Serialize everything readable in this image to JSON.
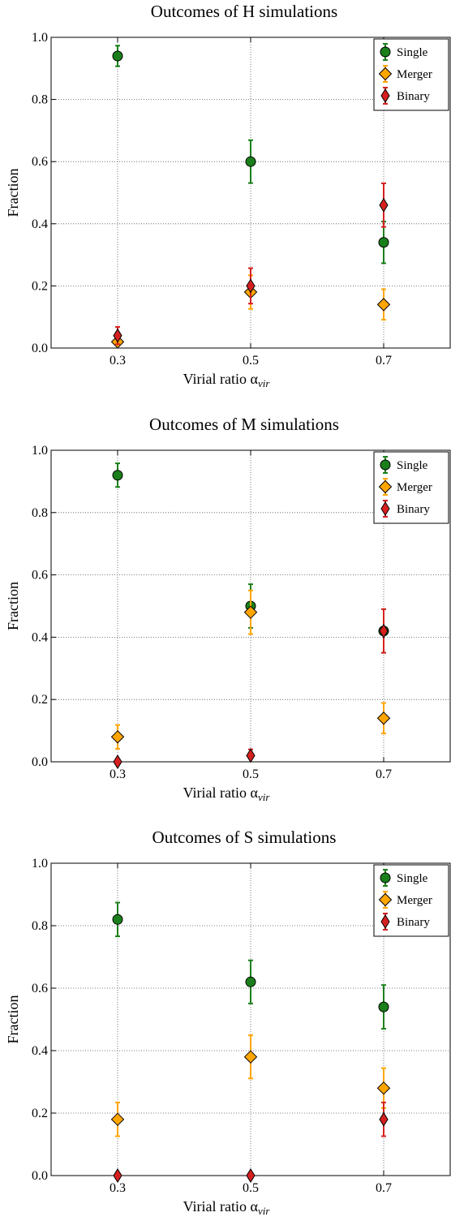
{
  "chart_data": [
    {
      "type": "scatter",
      "title": "Outcomes of H simulations",
      "xlabel": "Virial ratio α",
      "xlabel_sub": "vir",
      "ylabel": "Fraction",
      "x_ticks": [
        "0.3",
        "0.5",
        "0.7"
      ],
      "x": [
        0.3,
        0.5,
        0.7
      ],
      "xlim": [
        0.2,
        0.8
      ],
      "ylim": [
        0.0,
        1.0
      ],
      "y_ticks": [
        "0.0",
        "0.2",
        "0.4",
        "0.6",
        "0.8",
        "1.0"
      ],
      "grid": true,
      "legend_position": "top-right",
      "series": [
        {
          "name": "Single",
          "marker": "circle",
          "color": "#1a7f1a",
          "values": [
            0.94,
            0.6,
            0.34
          ],
          "errors": [
            0.033,
            0.069,
            0.067
          ]
        },
        {
          "name": "Merger",
          "marker": "diamond",
          "color": "#ffa500",
          "values": [
            0.02,
            0.18,
            0.14
          ],
          "errors": [
            0.02,
            0.054,
            0.049
          ]
        },
        {
          "name": "Binary",
          "marker": "thin-diamond",
          "color": "#d62020",
          "values": [
            0.04,
            0.2,
            0.46
          ],
          "errors": [
            0.028,
            0.057,
            0.07
          ]
        }
      ]
    },
    {
      "type": "scatter",
      "title": "Outcomes of M simulations",
      "xlabel": "Virial ratio α",
      "xlabel_sub": "vir",
      "ylabel": "Fraction",
      "x_ticks": [
        "0.3",
        "0.5",
        "0.7"
      ],
      "x": [
        0.3,
        0.5,
        0.7
      ],
      "xlim": [
        0.2,
        0.8
      ],
      "ylim": [
        0.0,
        1.0
      ],
      "y_ticks": [
        "0.0",
        "0.2",
        "0.4",
        "0.6",
        "0.8",
        "1.0"
      ],
      "grid": true,
      "legend_position": "top-right",
      "series": [
        {
          "name": "Single",
          "marker": "circle",
          "color": "#1a7f1a",
          "values": [
            0.92,
            0.5,
            0.42
          ],
          "errors": [
            0.038,
            0.07,
            0.07
          ]
        },
        {
          "name": "Merger",
          "marker": "diamond",
          "color": "#ffa500",
          "values": [
            0.08,
            0.48,
            0.14
          ],
          "errors": [
            0.038,
            0.07,
            0.049
          ]
        },
        {
          "name": "Binary",
          "marker": "thin-diamond",
          "color": "#d62020",
          "values": [
            0.0,
            0.02,
            0.42
          ],
          "errors": [
            0.0,
            0.02,
            0.07
          ]
        }
      ]
    },
    {
      "type": "scatter",
      "title": "Outcomes of S simulations",
      "xlabel": "Virial ratio α",
      "xlabel_sub": "vir",
      "ylabel": "Fraction",
      "x_ticks": [
        "0.3",
        "0.5",
        "0.7"
      ],
      "x": [
        0.3,
        0.5,
        0.7
      ],
      "xlim": [
        0.2,
        0.8
      ],
      "ylim": [
        0.0,
        1.0
      ],
      "y_ticks": [
        "0.0",
        "0.2",
        "0.4",
        "0.6",
        "0.8",
        "1.0"
      ],
      "grid": true,
      "legend_position": "top-right",
      "series": [
        {
          "name": "Single",
          "marker": "circle",
          "color": "#1a7f1a",
          "values": [
            0.82,
            0.62,
            0.54
          ],
          "errors": [
            0.054,
            0.069,
            0.07
          ]
        },
        {
          "name": "Merger",
          "marker": "diamond",
          "color": "#ffa500",
          "values": [
            0.18,
            0.38,
            0.28
          ],
          "errors": [
            0.054,
            0.069,
            0.064
          ]
        },
        {
          "name": "Binary",
          "marker": "thin-diamond",
          "color": "#d62020",
          "values": [
            0.0,
            0.0,
            0.18
          ],
          "errors": [
            0.0,
            0.0,
            0.054
          ]
        }
      ]
    }
  ]
}
